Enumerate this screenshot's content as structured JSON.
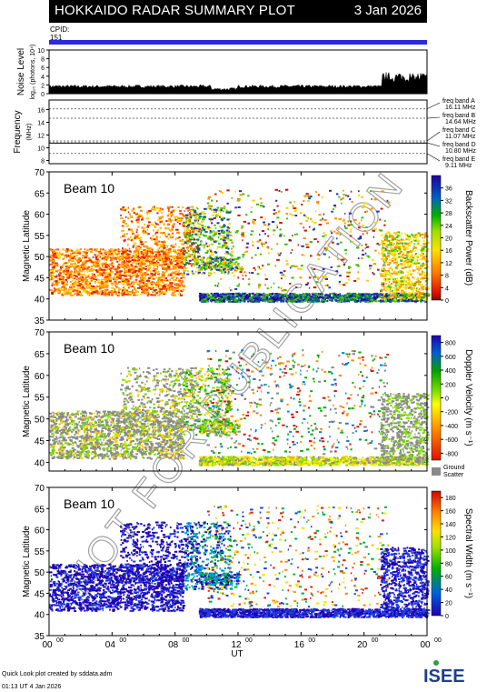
{
  "header": {
    "title": "HOKKAIDO RADAR SUMMARY PLOT",
    "date": "3 Jan 2026",
    "cpid_label": "CPID:",
    "cpid_value": "151"
  },
  "watermark": "NOT FOR PUBLICATION",
  "colors": {
    "cpid_bar": "#2a2adf",
    "ground_scatter": "#8a8a8a"
  },
  "chart_data": [
    {
      "type": "area",
      "name": "noise",
      "ylabel": "Noise Level",
      "ylabel_sub": "log₁₀ (photons,  10⁴)",
      "yticks": [
        "0",
        "2",
        "4",
        "6",
        "8",
        "10"
      ],
      "ylim": [
        0,
        10
      ]
    },
    {
      "type": "line",
      "name": "frequency",
      "ylabel": "Frequency",
      "ylabel_sub": "(MHz)",
      "yticks": [
        "8",
        "10",
        "12",
        "14",
        "16"
      ],
      "ylim": [
        7.5,
        17.5
      ],
      "freq_bands": [
        {
          "label": "freq band A",
          "value": "16.11 MHz",
          "mhz": 16.11
        },
        {
          "label": "freq band B",
          "value": "14.64 MHz",
          "mhz": 14.64
        },
        {
          "label": "freq band C",
          "value": "11.07 MHz",
          "mhz": 11.07
        },
        {
          "label": "freq band D",
          "value": "10.80 MHz",
          "mhz": 10.8
        },
        {
          "label": "freq band E",
          "value": "9.11 MHz",
          "mhz": 9.11
        }
      ]
    },
    {
      "type": "heatmap",
      "name": "power",
      "beam_label": "Beam 10",
      "ylabel": "Magnetic Latitude",
      "yticks": [
        "35",
        "40",
        "45",
        "50",
        "55",
        "60",
        "65",
        "70"
      ],
      "ylim": [
        35,
        70
      ],
      "colorbar_title": "Backscatter Power (dB)",
      "colorbar_ticks": [
        "0",
        "4",
        "8",
        "12",
        "16",
        "20",
        "24",
        "28",
        "32",
        "36"
      ],
      "colorbar_range": [
        0,
        40
      ]
    },
    {
      "type": "heatmap",
      "name": "velocity",
      "beam_label": "Beam 10",
      "ylabel": "Magnetic Latitude",
      "yticks": [
        "40",
        "45",
        "50",
        "55",
        "60",
        "65",
        "70"
      ],
      "ylim": [
        38,
        70
      ],
      "colorbar_title": "Doppler Velocity (m s⁻¹)",
      "colorbar_ticks": [
        "-800",
        "-600",
        "-400",
        "-200",
        "0",
        "200",
        "400",
        "600",
        "800"
      ],
      "colorbar_range": [
        -900,
        900
      ],
      "ground_label": "Ground",
      "ground_label2": "Scatter"
    },
    {
      "type": "heatmap",
      "name": "width",
      "beam_label": "Beam 10",
      "ylabel": "Magnetic Latitude",
      "yticks": [
        "35",
        "40",
        "45",
        "50",
        "55",
        "60",
        "65",
        "70"
      ],
      "ylim": [
        35,
        70
      ],
      "colorbar_title": "Spectral Width (m s⁻¹)",
      "colorbar_ticks": [
        "0",
        "20",
        "40",
        "60",
        "80",
        "100",
        "120",
        "140",
        "160",
        "180"
      ],
      "colorbar_range": [
        0,
        190
      ],
      "xlabel": "UT",
      "xticks": [
        "00",
        "04",
        "08",
        "12",
        "16",
        "20",
        "00"
      ],
      "xtick_sup": "00",
      "xlim": [
        0,
        24
      ]
    }
  ],
  "footer": {
    "line1": "Quick Look plot created by sddata.adm",
    "line2": "01:13 UT  4 Jan 2026"
  },
  "logo": {
    "text": "ISEE"
  }
}
